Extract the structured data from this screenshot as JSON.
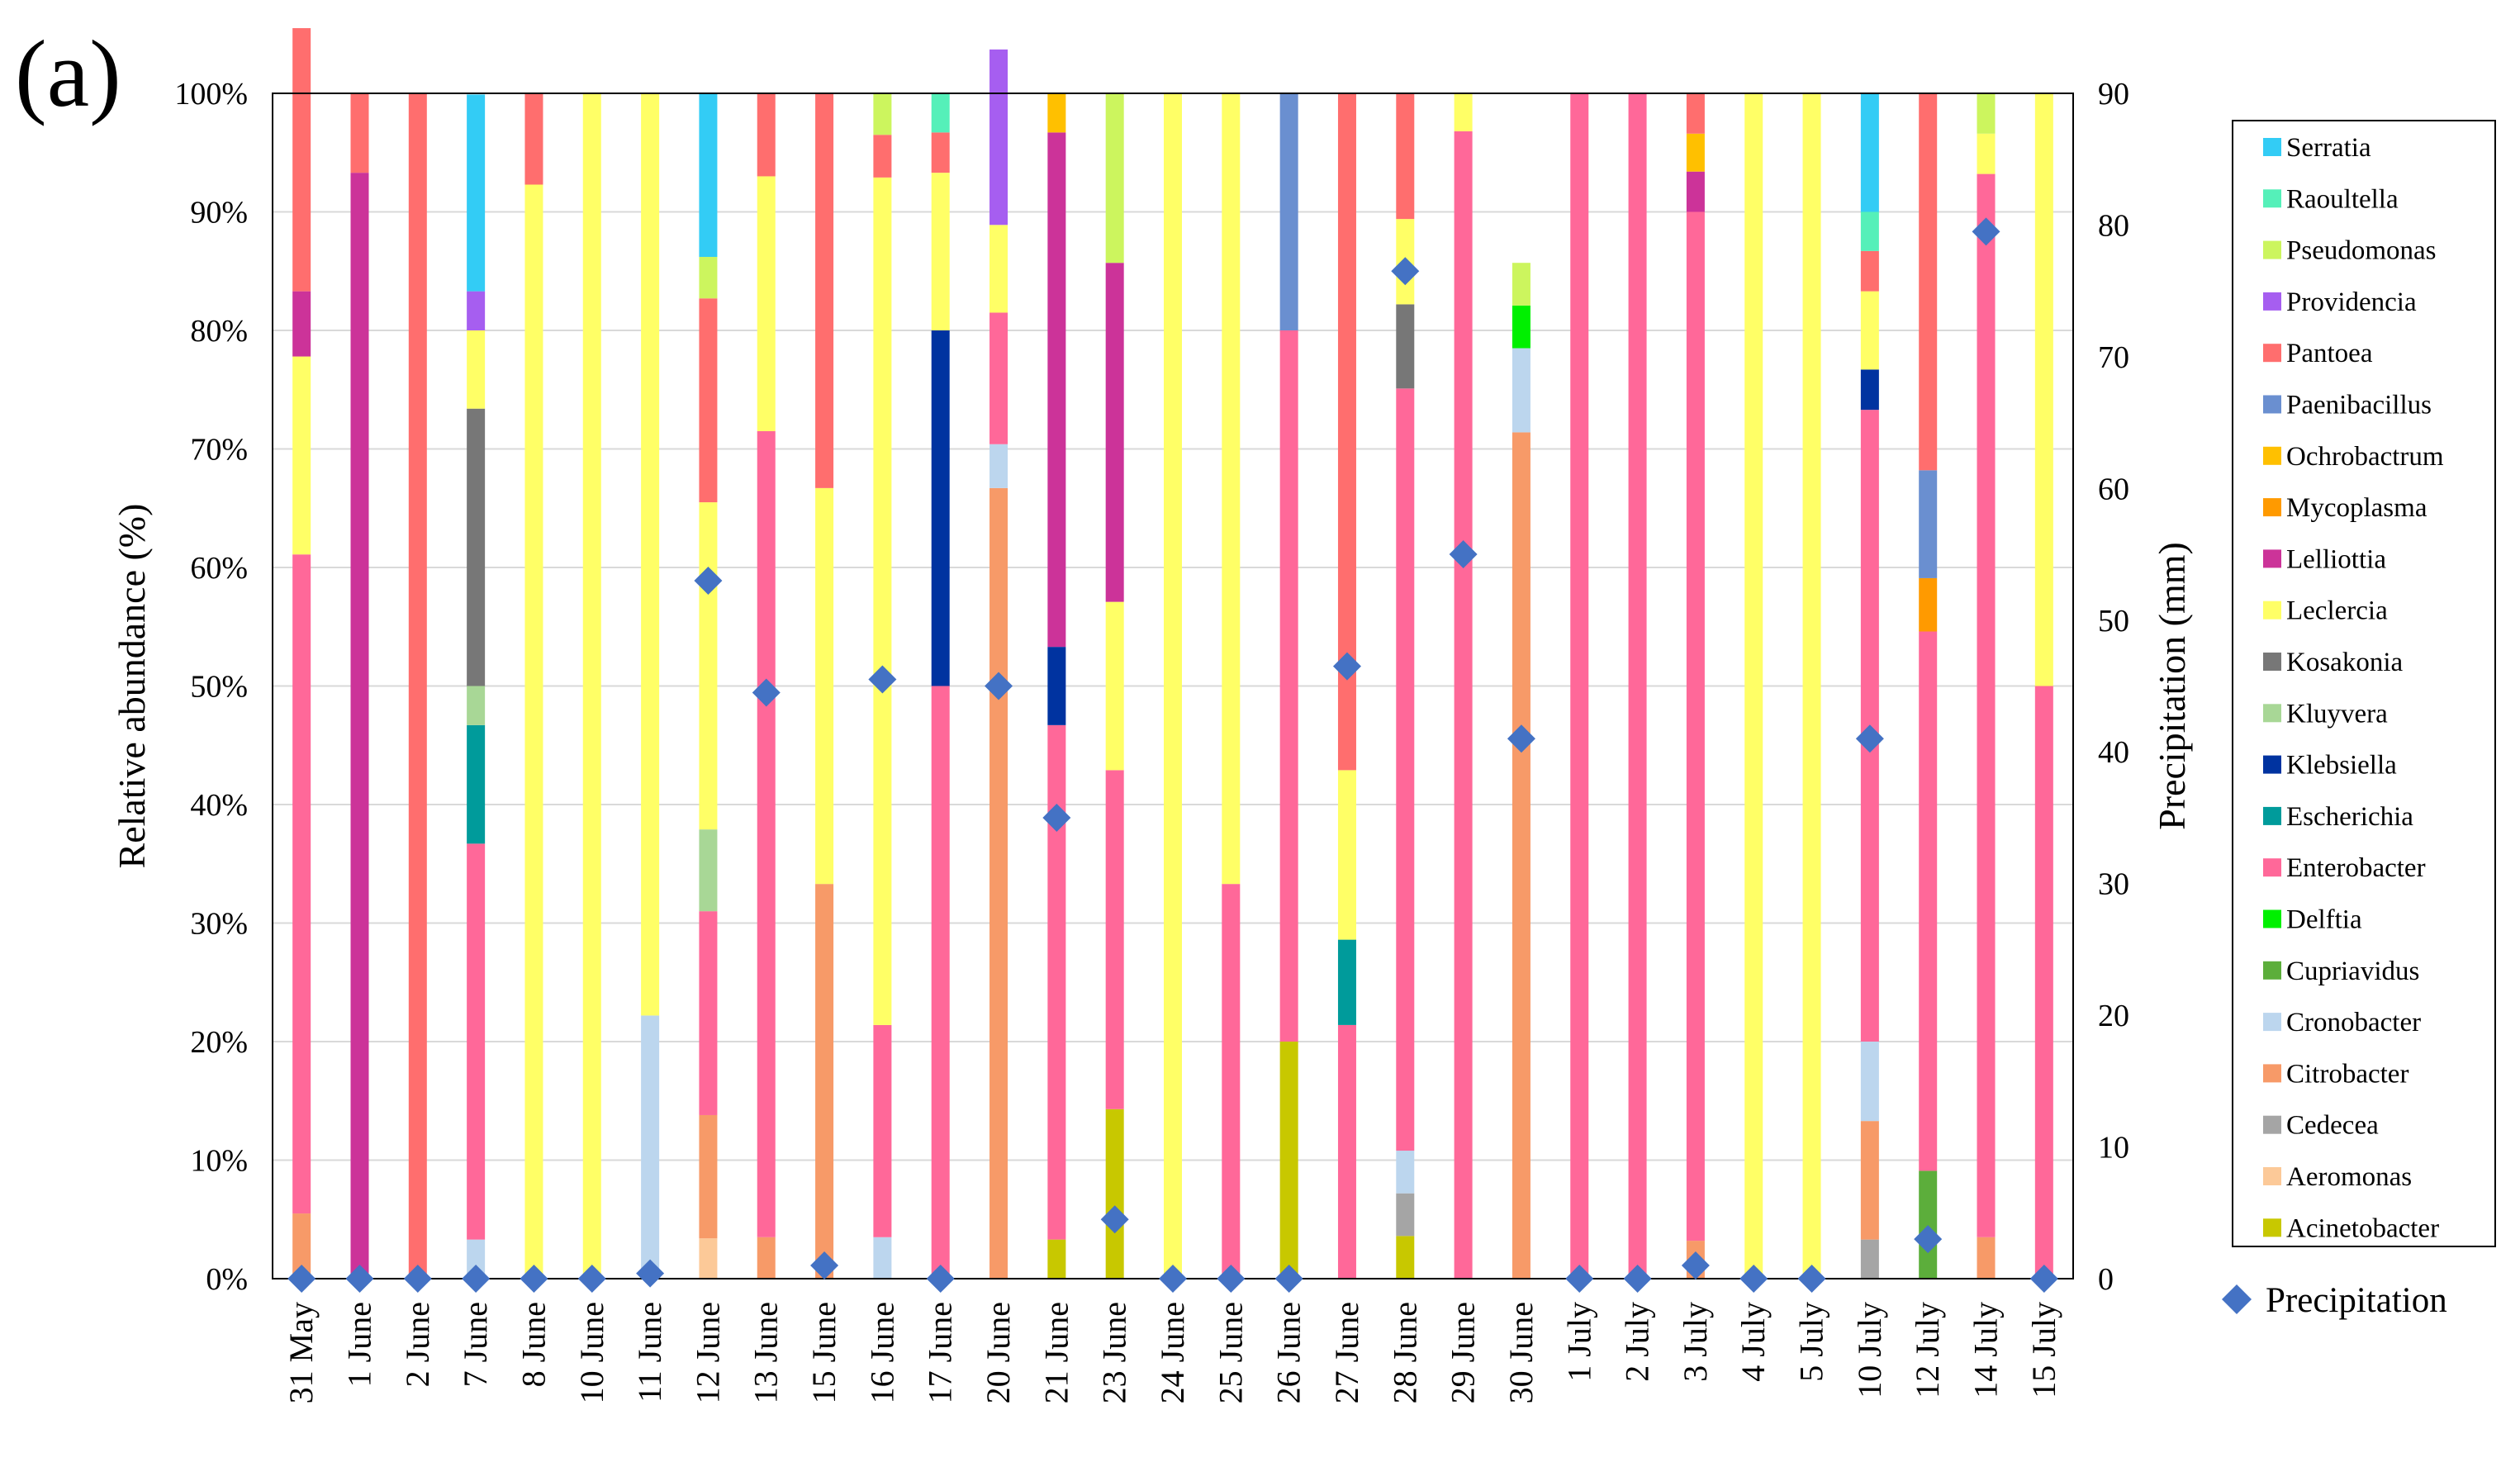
{
  "chart_data": {
    "type": "bar",
    "stacked": true,
    "panel_label": "(a)",
    "title": "",
    "xlabel": "",
    "ylabel": "Relative abundance (%)",
    "y2label": "Precipitation  (mm)",
    "ylim": [
      0,
      100
    ],
    "y2lim": [
      0,
      90
    ],
    "yticks": [
      "0%",
      "10%",
      "20%",
      "30%",
      "40%",
      "50%",
      "60%",
      "70%",
      "80%",
      "90%",
      "100%"
    ],
    "y2ticks": [
      "0",
      "10",
      "20",
      "30",
      "40",
      "50",
      "60",
      "70",
      "80",
      "90"
    ],
    "grid": true,
    "legend_position": "right",
    "categories": [
      "31 May",
      "1 June",
      "2 June",
      "7 June",
      "8 June",
      "10 June",
      "11 June",
      "12 June",
      "13 June",
      "15 June",
      "16 June",
      "17 June",
      "20 June",
      "21 June",
      "23 June",
      "24 June",
      "25 June",
      "26 June",
      "27 June",
      "28 June",
      "29 June",
      "30 June",
      "1 July",
      "2 July",
      "3 July",
      "4 July",
      "5 July",
      "10 July",
      "12 July",
      "14 July",
      "15 July"
    ],
    "series": [
      {
        "name": "Acinetobacter",
        "color": "#c8c800",
        "values": [
          0,
          0,
          0,
          0,
          0,
          0,
          0,
          0,
          0,
          0,
          0,
          0,
          0,
          3.3,
          14.3,
          0,
          0,
          20,
          0,
          3.6,
          0,
          0,
          0,
          0,
          0,
          0,
          0,
          0,
          0,
          0,
          0
        ]
      },
      {
        "name": "Aeromonas",
        "color": "#fcc998",
        "values": [
          0,
          0,
          0,
          0,
          0,
          0,
          0,
          3.4,
          0,
          0,
          0,
          0,
          0,
          0,
          0,
          0,
          0,
          0,
          0,
          0,
          0,
          0,
          0,
          0,
          0,
          0,
          0,
          0,
          0,
          0,
          0
        ]
      },
      {
        "name": "Cedecea",
        "color": "#a5a5a5",
        "values": [
          0,
          0,
          0,
          0,
          0,
          0,
          0,
          0,
          0,
          0,
          0,
          0,
          0,
          0,
          0,
          0,
          0,
          0,
          0,
          3.6,
          0,
          0,
          0,
          0,
          0,
          0,
          0,
          3.3,
          0,
          0,
          0
        ]
      },
      {
        "name": "Citrobacter",
        "color": "#f79a68",
        "values": [
          5.5,
          0,
          0,
          0,
          0,
          0,
          0,
          10.4,
          3.5,
          33.3,
          0,
          0,
          66.7,
          0,
          0,
          0,
          0,
          0,
          0,
          0,
          0,
          71.4,
          0,
          0,
          3.2,
          0,
          0,
          10,
          0,
          3.5,
          0
        ]
      },
      {
        "name": "Cronobacter",
        "color": "#bcd6ee",
        "values": [
          0,
          0,
          0,
          3.3,
          0,
          0,
          22.2,
          0,
          0,
          0,
          3.5,
          0,
          3.7,
          0,
          0,
          0,
          0,
          0,
          0,
          3.6,
          0,
          7.1,
          0,
          0,
          0,
          0,
          0,
          6.7,
          0,
          0,
          0
        ]
      },
      {
        "name": "Cupriavidus",
        "color": "#5cae3b",
        "values": [
          0,
          0,
          0,
          0,
          0,
          0,
          0,
          0,
          0,
          0,
          0,
          0,
          0,
          0,
          0,
          0,
          0,
          0,
          0,
          0,
          0,
          0,
          0,
          0,
          0,
          0,
          0,
          0,
          9.1,
          0,
          0
        ]
      },
      {
        "name": "Delftia",
        "color": "#00f000",
        "values": [
          0,
          0,
          0,
          0,
          0,
          0,
          0,
          0,
          0,
          0,
          0,
          0,
          0,
          0,
          0,
          0,
          0,
          0,
          0,
          0,
          0,
          3.6,
          0,
          0,
          0,
          0,
          0,
          0,
          0,
          0,
          0
        ]
      },
      {
        "name": "Enterobacter",
        "color": "#ff6899",
        "values": [
          55.6,
          0,
          0,
          33.4,
          0,
          0,
          0,
          17.2,
          68,
          0,
          17.9,
          50,
          11.1,
          43.4,
          28.6,
          0,
          33.3,
          60,
          21.4,
          64.3,
          96.8,
          0,
          100,
          100,
          86.8,
          0,
          0,
          53.3,
          45.5,
          89.7,
          50
        ]
      },
      {
        "name": "Escherichia",
        "color": "#009b9b",
        "values": [
          0,
          0,
          0,
          10,
          0,
          0,
          0,
          0,
          0,
          0,
          0,
          0,
          0,
          0,
          0,
          0,
          0,
          0,
          7.2,
          0,
          0,
          0,
          0,
          0,
          0,
          0,
          0,
          0,
          0,
          0,
          0
        ]
      },
      {
        "name": "Klebsiella",
        "color": "#0033a0",
        "values": [
          0,
          0,
          0,
          0,
          0,
          0,
          0,
          0,
          0,
          0,
          0,
          30,
          0,
          6.6,
          0,
          0,
          0,
          0,
          0,
          0,
          0,
          0,
          0,
          0,
          0,
          0,
          0,
          3.4,
          0,
          0,
          0
        ]
      },
      {
        "name": "Kluyvera",
        "color": "#a8d796",
        "values": [
          0,
          0,
          0,
          3.3,
          0,
          0,
          0,
          6.9,
          0,
          0,
          0,
          0,
          0,
          0,
          0,
          0,
          0,
          0,
          0,
          0,
          0,
          0,
          0,
          0,
          0,
          0,
          0,
          0,
          0,
          0,
          0
        ]
      },
      {
        "name": "Kosakonia",
        "color": "#777777",
        "values": [
          0,
          0,
          0,
          23.4,
          0,
          0,
          0,
          0,
          0,
          0,
          0,
          0,
          0,
          0,
          0,
          0,
          0,
          0,
          0,
          7.1,
          0,
          0,
          0,
          0,
          0,
          0,
          0,
          0,
          0,
          0,
          0
        ]
      },
      {
        "name": "Leclercia",
        "color": "#ffff66",
        "values": [
          16.7,
          0,
          0,
          6.6,
          92.3,
          100,
          77.8,
          27.6,
          21.5,
          33.4,
          71.5,
          13.3,
          7.4,
          0,
          14.2,
          100,
          66.7,
          0,
          14.3,
          7.2,
          3.2,
          0,
          0,
          0,
          0,
          100,
          100,
          6.6,
          0,
          3.4,
          50
        ]
      },
      {
        "name": "Lelliottia",
        "color": "#cc3399",
        "values": [
          5.5,
          93.3,
          0,
          0,
          0,
          0,
          0,
          0,
          0,
          0,
          0,
          0,
          0,
          43.4,
          28.6,
          0,
          0,
          0,
          0,
          0,
          0,
          0,
          0,
          0,
          3.4,
          0,
          0,
          0,
          0,
          0,
          0
        ]
      },
      {
        "name": "Mycoplasma",
        "color": "#ff9a00",
        "values": [
          0,
          0,
          0,
          0,
          0,
          0,
          0,
          0,
          0,
          0,
          0,
          0,
          0,
          0,
          0,
          0,
          0,
          0,
          0,
          0,
          0,
          0,
          0,
          0,
          0,
          0,
          0,
          0,
          4.5,
          0,
          0
        ]
      },
      {
        "name": "Ochrobactrum",
        "color": "#ffc000",
        "values": [
          0,
          0,
          0,
          0,
          0,
          0,
          0,
          0,
          0,
          0,
          0,
          0,
          0,
          3.3,
          0,
          0,
          0,
          0,
          0,
          0,
          0,
          0,
          0,
          0,
          3.2,
          0,
          0,
          0,
          0,
          0,
          0
        ]
      },
      {
        "name": "Paenibacillus",
        "color": "#6a8fd0",
        "values": [
          0,
          0,
          0,
          0,
          0,
          0,
          0,
          0,
          0,
          0,
          0,
          0,
          0,
          0,
          0,
          0,
          0,
          20,
          0,
          0,
          0,
          0,
          0,
          0,
          0,
          0,
          0,
          0,
          9.1,
          0,
          0
        ]
      },
      {
        "name": "Pantoea",
        "color": "#ff6e6e",
        "values": [
          22.2,
          6.7,
          100,
          0,
          7.7,
          0,
          0,
          17.2,
          7,
          33.3,
          3.6,
          3.4,
          0,
          0,
          0,
          0,
          0,
          0,
          57.1,
          10.6,
          0,
          0,
          0,
          0,
          3.4,
          0,
          0,
          3.4,
          31.8,
          0,
          0
        ]
      },
      {
        "name": "Providencia",
        "color": "#a65ef0",
        "values": [
          0,
          0,
          0,
          3.3,
          0,
          0,
          0,
          0,
          0,
          0,
          0,
          0,
          14.8,
          0,
          0,
          0,
          0,
          0,
          0,
          0,
          0,
          0,
          0,
          0,
          0,
          0,
          0,
          0,
          0,
          0,
          0
        ]
      },
      {
        "name": "Pseudomonas",
        "color": "#ccf55e",
        "values": [
          0,
          0,
          0,
          0,
          0,
          0,
          0,
          3.5,
          0,
          0,
          3.5,
          0,
          0,
          0,
          14.3,
          0,
          0,
          0,
          0,
          0,
          0,
          3.6,
          0,
          0,
          0,
          0,
          0,
          0,
          0,
          3.4,
          0
        ]
      },
      {
        "name": "Raoultella",
        "color": "#55f0b9",
        "values": [
          0,
          0,
          0,
          0,
          0,
          0,
          0,
          0,
          0,
          0,
          0,
          3.3,
          0,
          0,
          0,
          0,
          0,
          0,
          0,
          0,
          0,
          0,
          0,
          0,
          0,
          0,
          0,
          3.3,
          0,
          0,
          0
        ]
      },
      {
        "name": "Serratia",
        "color": "#33ccf5",
        "values": [
          0,
          0,
          0,
          16.6,
          0,
          0,
          0,
          13.8,
          0,
          0,
          0,
          0,
          0,
          0,
          0,
          0,
          0,
          0,
          0,
          0,
          0,
          0,
          0,
          0,
          0,
          0,
          0,
          10,
          0,
          0,
          0
        ]
      }
    ],
    "precipitation": {
      "name": "Precipitation",
      "marker": "diamond",
      "color": "#4472c4",
      "axis": "right",
      "values": [
        0,
        0,
        0,
        0,
        0,
        0,
        0.4,
        53,
        44.5,
        1,
        45.5,
        0,
        45,
        35,
        4.5,
        0,
        0,
        0,
        46.5,
        76.5,
        55,
        41,
        0,
        0,
        1,
        0,
        0,
        41,
        3,
        79.5,
        0
      ]
    }
  }
}
